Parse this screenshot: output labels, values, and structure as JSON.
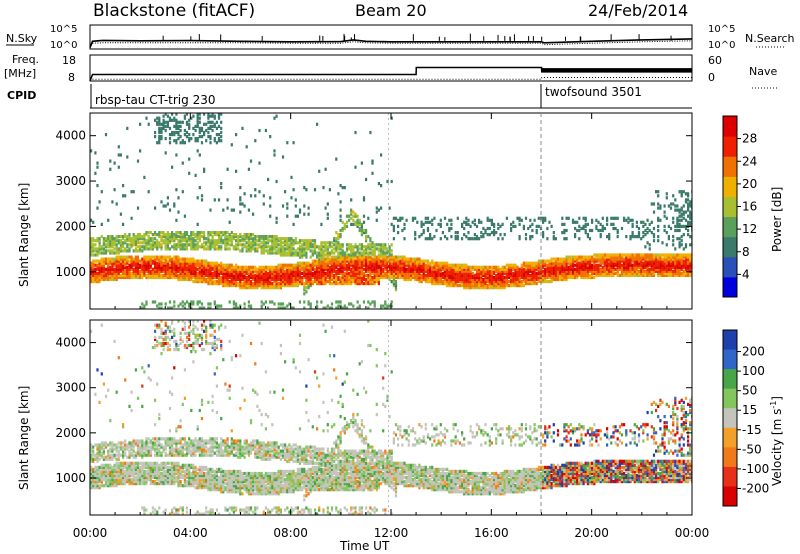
{
  "header": {
    "station": "Blackstone (fitACF)",
    "beam": "Beam 20",
    "date": "24/Feb/2014"
  },
  "labels": {
    "nsky": "N.Sky",
    "nsearch": "N.Search",
    "freq": "Freq.",
    "freq_unit": "[MHz]",
    "nave": "Nave",
    "cpid": "CPID",
    "xlabel": "Time UT",
    "ylabel": "Slant Range [km]",
    "power_label": "Power [dB]",
    "velocity_label": "Velocity  [m s",
    "velocity_sup": "-1",
    "velocity_close": "]"
  },
  "noise_panel": {
    "left_ticks": [
      "10^5",
      "10^0"
    ],
    "right_ticks": [
      "10^5",
      "10^0"
    ]
  },
  "freq_panel": {
    "left_ticks": [
      "18",
      "8"
    ],
    "right_ticks": [
      "60",
      "0"
    ]
  },
  "cpid_segments": [
    {
      "label": "rbsp-tau CT-trig 230",
      "start_hour": 0
    },
    {
      "label": "twofsound 3501",
      "start_hour": 18
    }
  ],
  "chart_data": [
    {
      "type": "line",
      "name": "noise-sky-search",
      "x_hours": [
        0,
        0.1,
        0.5,
        2,
        4,
        6,
        8,
        10,
        10.5,
        11,
        12,
        14,
        16,
        18,
        18.1,
        20,
        22,
        24
      ],
      "series": [
        {
          "name": "N.Sky",
          "values_log10": [
            0.3,
            1.6,
            1.8,
            1.7,
            1.75,
            1.6,
            1.5,
            1.55,
            1.9,
            1.6,
            1.5,
            1.5,
            1.5,
            1.5,
            1.3,
            1.6,
            1.9,
            2.1
          ]
        },
        {
          "name": "N.Search",
          "values_log10": [
            0.3,
            1.2,
            1.3,
            1.3,
            1.3,
            1.3,
            1.2,
            1.2,
            1.5,
            1.3,
            1.2,
            1.2,
            1.2,
            1.2,
            0.9,
            1.2,
            1.5,
            1.7
          ]
        }
      ],
      "ylim_log10": [
        0,
        5
      ]
    },
    {
      "type": "line",
      "name": "frequency-nave",
      "x_hours": [
        0,
        0.1,
        13,
        13.01,
        18,
        18.01,
        24
      ],
      "series": [
        {
          "name": "Freq.",
          "unit": "MHz",
          "values": [
            8,
            10.5,
            10.5,
            13.2,
            13.2,
            11.5,
            11.5
          ]
        },
        {
          "name": "Nave",
          "values": [
            0,
            4,
            4,
            4,
            4,
            8,
            8
          ]
        }
      ],
      "ylim_freq": [
        8,
        18
      ],
      "ylim_nave": [
        0,
        60
      ]
    },
    {
      "type": "heatmap",
      "name": "power",
      "x_range_hours": [
        0,
        24
      ],
      "y_range_km": [
        180,
        4500
      ],
      "yticks": [
        1000,
        2000,
        3000,
        4000
      ],
      "colorbar_ticks": [
        4,
        8,
        12,
        16,
        20,
        24,
        28
      ],
      "colorbar_range": [
        0,
        32
      ],
      "colorbar_colors": [
        "#0000dd",
        "#2a4fb8",
        "#3a7a6a",
        "#5aa05a",
        "#a8c030",
        "#f0b000",
        "#f07000",
        "#ee2000",
        "#dd0000"
      ],
      "features": [
        {
          "desc": "strong E-region band",
          "hours": [
            0,
            24
          ],
          "km": [
            850,
            1300
          ],
          "power_db": 28
        },
        {
          "desc": "mid band",
          "hours": [
            0,
            11.5
          ],
          "km": [
            1450,
            1900
          ],
          "power_db": 14
        },
        {
          "desc": "scatter patch",
          "hours": [
            9.5,
            12.5
          ],
          "km": [
            1200,
            3000
          ],
          "power_db": 10
        }
      ]
    },
    {
      "type": "heatmap",
      "name": "velocity",
      "x_range_hours": [
        0,
        24
      ],
      "y_range_km": [
        180,
        4500
      ],
      "yticks": [
        1000,
        2000,
        3000,
        4000
      ],
      "colorbar_ticks": [
        200,
        100,
        50,
        15,
        -15,
        -50,
        -100,
        -200
      ],
      "colorbar_colors": [
        "#1f3faa",
        "#2f66c8",
        "#48a648",
        "#84c65e",
        "#c4c4bc",
        "#f3a02a",
        "#f07a1a",
        "#e83018",
        "#d80000"
      ]
    }
  ],
  "x_ticks": [
    "00:00",
    "04:00",
    "08:00",
    "12:00",
    "16:00",
    "20:00",
    "00:00"
  ]
}
